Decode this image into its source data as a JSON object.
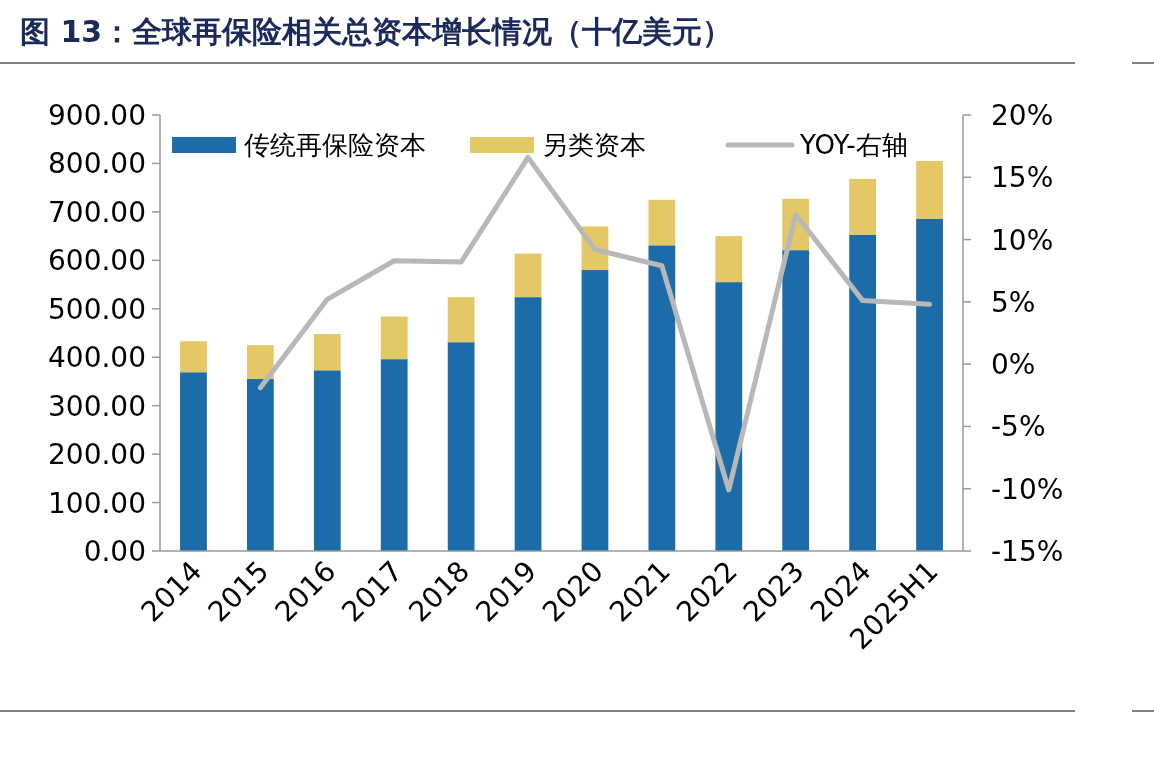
{
  "chart_data": {
    "type": "bar",
    "title": "图 13：全球再保险相关总资本增长情况（十亿美元）",
    "categories": [
      "2014",
      "2015",
      "2016",
      "2017",
      "2018",
      "2019",
      "2020",
      "2021",
      "2022",
      "2023",
      "2024",
      "2025H1"
    ],
    "stacked": true,
    "legend": "top",
    "series": [
      {
        "name": "传统再保险资本",
        "color": "#1b6ca8",
        "values": [
          369,
          355,
          373,
          396,
          431,
          524,
          580,
          631,
          555,
          621,
          653,
          686
        ]
      },
      {
        "name": "另类资本",
        "color": "#e4c866",
        "values": [
          64,
          70,
          75,
          88,
          93,
          90,
          90,
          94,
          95,
          106,
          115,
          119
        ]
      },
      {
        "name": "YOY-右轴",
        "type": "line",
        "axis": "y2",
        "color": "#b8b8b8",
        "values": [
          null,
          -1.9,
          5.2,
          8.3,
          8.2,
          16.6,
          9.2,
          7.9,
          -10.1,
          12.0,
          5.1,
          4.8
        ]
      }
    ],
    "ylim": [
      0,
      900
    ],
    "yticks": [
      {
        "value": 0,
        "label": "0.00"
      },
      {
        "value": 100,
        "label": "100.00"
      },
      {
        "value": 200,
        "label": "200.00"
      },
      {
        "value": 300,
        "label": "300.00"
      },
      {
        "value": 400,
        "label": "400.00"
      },
      {
        "value": 500,
        "label": "500.00"
      },
      {
        "value": 600,
        "label": "600.00"
      },
      {
        "value": 700,
        "label": "700.00"
      },
      {
        "value": 800,
        "label": "800.00"
      },
      {
        "value": 900,
        "label": "900.00"
      }
    ],
    "y2lim": [
      -15,
      20
    ],
    "y2ticks": [
      {
        "value": -15,
        "label": "-15%"
      },
      {
        "value": -10,
        "label": "-10%"
      },
      {
        "value": -5,
        "label": "-5%"
      },
      {
        "value": 0,
        "label": "0%"
      },
      {
        "value": 5,
        "label": "5%"
      },
      {
        "value": 10,
        "label": "10%"
      },
      {
        "value": 15,
        "label": "15%"
      },
      {
        "value": 20,
        "label": "20%"
      }
    ]
  }
}
